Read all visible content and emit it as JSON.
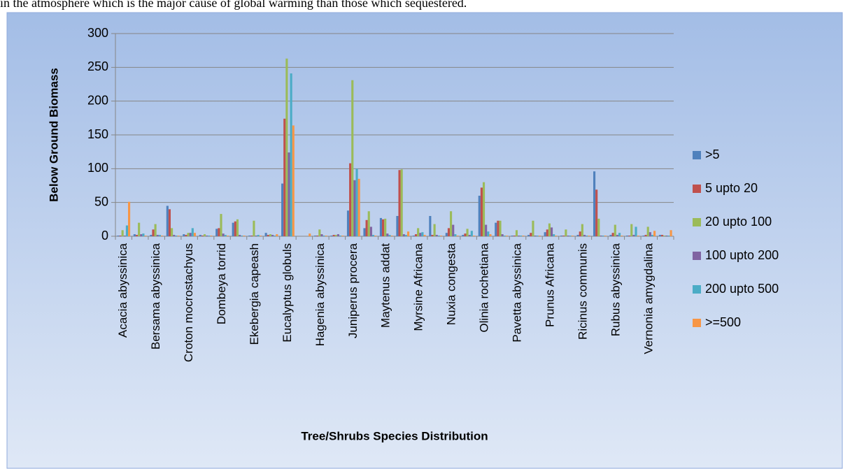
{
  "preceding_text": "in the atmosphere which is the major cause of global warming than those which sequestered.",
  "chart_data": {
    "type": "bar",
    "xlabel": "Tree/Shrubs Species Distribution",
    "ylabel": "Below Ground Biomass",
    "categories": [
      "Acacia abyssinica",
      null,
      "Bersama abyssinica",
      null,
      "Croton mocrostachyus",
      null,
      "Dombeya torrid",
      null,
      "Ekebergia capeash",
      null,
      "Eucalyptus globuls",
      null,
      "Hagenia abyssinica",
      null,
      "Juniperus procera",
      null,
      "Maytenus addat",
      null,
      "Myrsine Africana",
      null,
      "Nuxia congesta",
      null,
      "Olinia rochetiana",
      null,
      "Pavetta abyssinica",
      null,
      "Prunus Africana",
      null,
      "Ricinus communis",
      null,
      "Rubus abyssinica",
      null,
      "Vernonia amygdalina",
      null
    ],
    "series": [
      {
        "name": ">5",
        "color": "#4f81bd",
        "values": [
          1,
          3,
          2,
          45,
          3,
          2,
          11,
          20,
          1,
          5,
          78,
          0,
          1,
          1,
          38,
          12,
          27,
          30,
          1,
          30,
          5,
          2,
          60,
          20,
          1,
          2,
          6,
          1,
          2,
          96,
          2,
          1,
          1,
          2
        ]
      },
      {
        "name": "5 upto 20",
        "color": "#c0504d",
        "values": [
          1,
          2,
          10,
          40,
          2,
          1,
          12,
          22,
          1,
          2,
          174,
          0,
          1,
          2,
          108,
          24,
          25,
          98,
          3,
          2,
          12,
          4,
          72,
          23,
          1,
          5,
          10,
          1,
          7,
          69,
          5,
          1,
          2,
          2
        ]
      },
      {
        "name": "20 upto 100",
        "color": "#9bbb59",
        "values": [
          9,
          20,
          18,
          12,
          5,
          3,
          33,
          25,
          23,
          3,
          263,
          0,
          10,
          2,
          231,
          37,
          26,
          99,
          12,
          18,
          37,
          11,
          80,
          23,
          9,
          23,
          19,
          10,
          18,
          26,
          17,
          18,
          14,
          1
        ]
      },
      {
        "name": "100 upto 200",
        "color": "#8064a2",
        "values": [
          1,
          3,
          2,
          2,
          5,
          1,
          4,
          2,
          1,
          2,
          124,
          0,
          3,
          3,
          83,
          14,
          4,
          3,
          5,
          2,
          17,
          2,
          17,
          3,
          1,
          1,
          13,
          1,
          2,
          1,
          2,
          2,
          6,
          1
        ]
      },
      {
        "name": "200 upto 500",
        "color": "#4bacc6",
        "values": [
          16,
          4,
          2,
          1,
          12,
          1,
          2,
          1,
          2,
          1,
          241,
          0,
          1,
          1,
          100,
          2,
          2,
          2,
          6,
          1,
          3,
          8,
          7,
          1,
          1,
          1,
          3,
          1,
          1,
          1,
          5,
          14,
          2,
          1
        ]
      },
      {
        "name": ">=500",
        "color": "#f79646",
        "values": [
          51,
          1,
          1,
          1,
          5,
          1,
          1,
          1,
          1,
          3,
          164,
          4,
          1,
          1,
          85,
          1,
          1,
          7,
          2,
          1,
          1,
          1,
          3,
          1,
          1,
          1,
          1,
          1,
          1,
          1,
          1,
          1,
          8,
          9
        ]
      }
    ],
    "ylim": [
      0,
      300
    ],
    "yticks": [
      0,
      50,
      100,
      150,
      200,
      250,
      300
    ],
    "grid": true,
    "legend": "right"
  }
}
